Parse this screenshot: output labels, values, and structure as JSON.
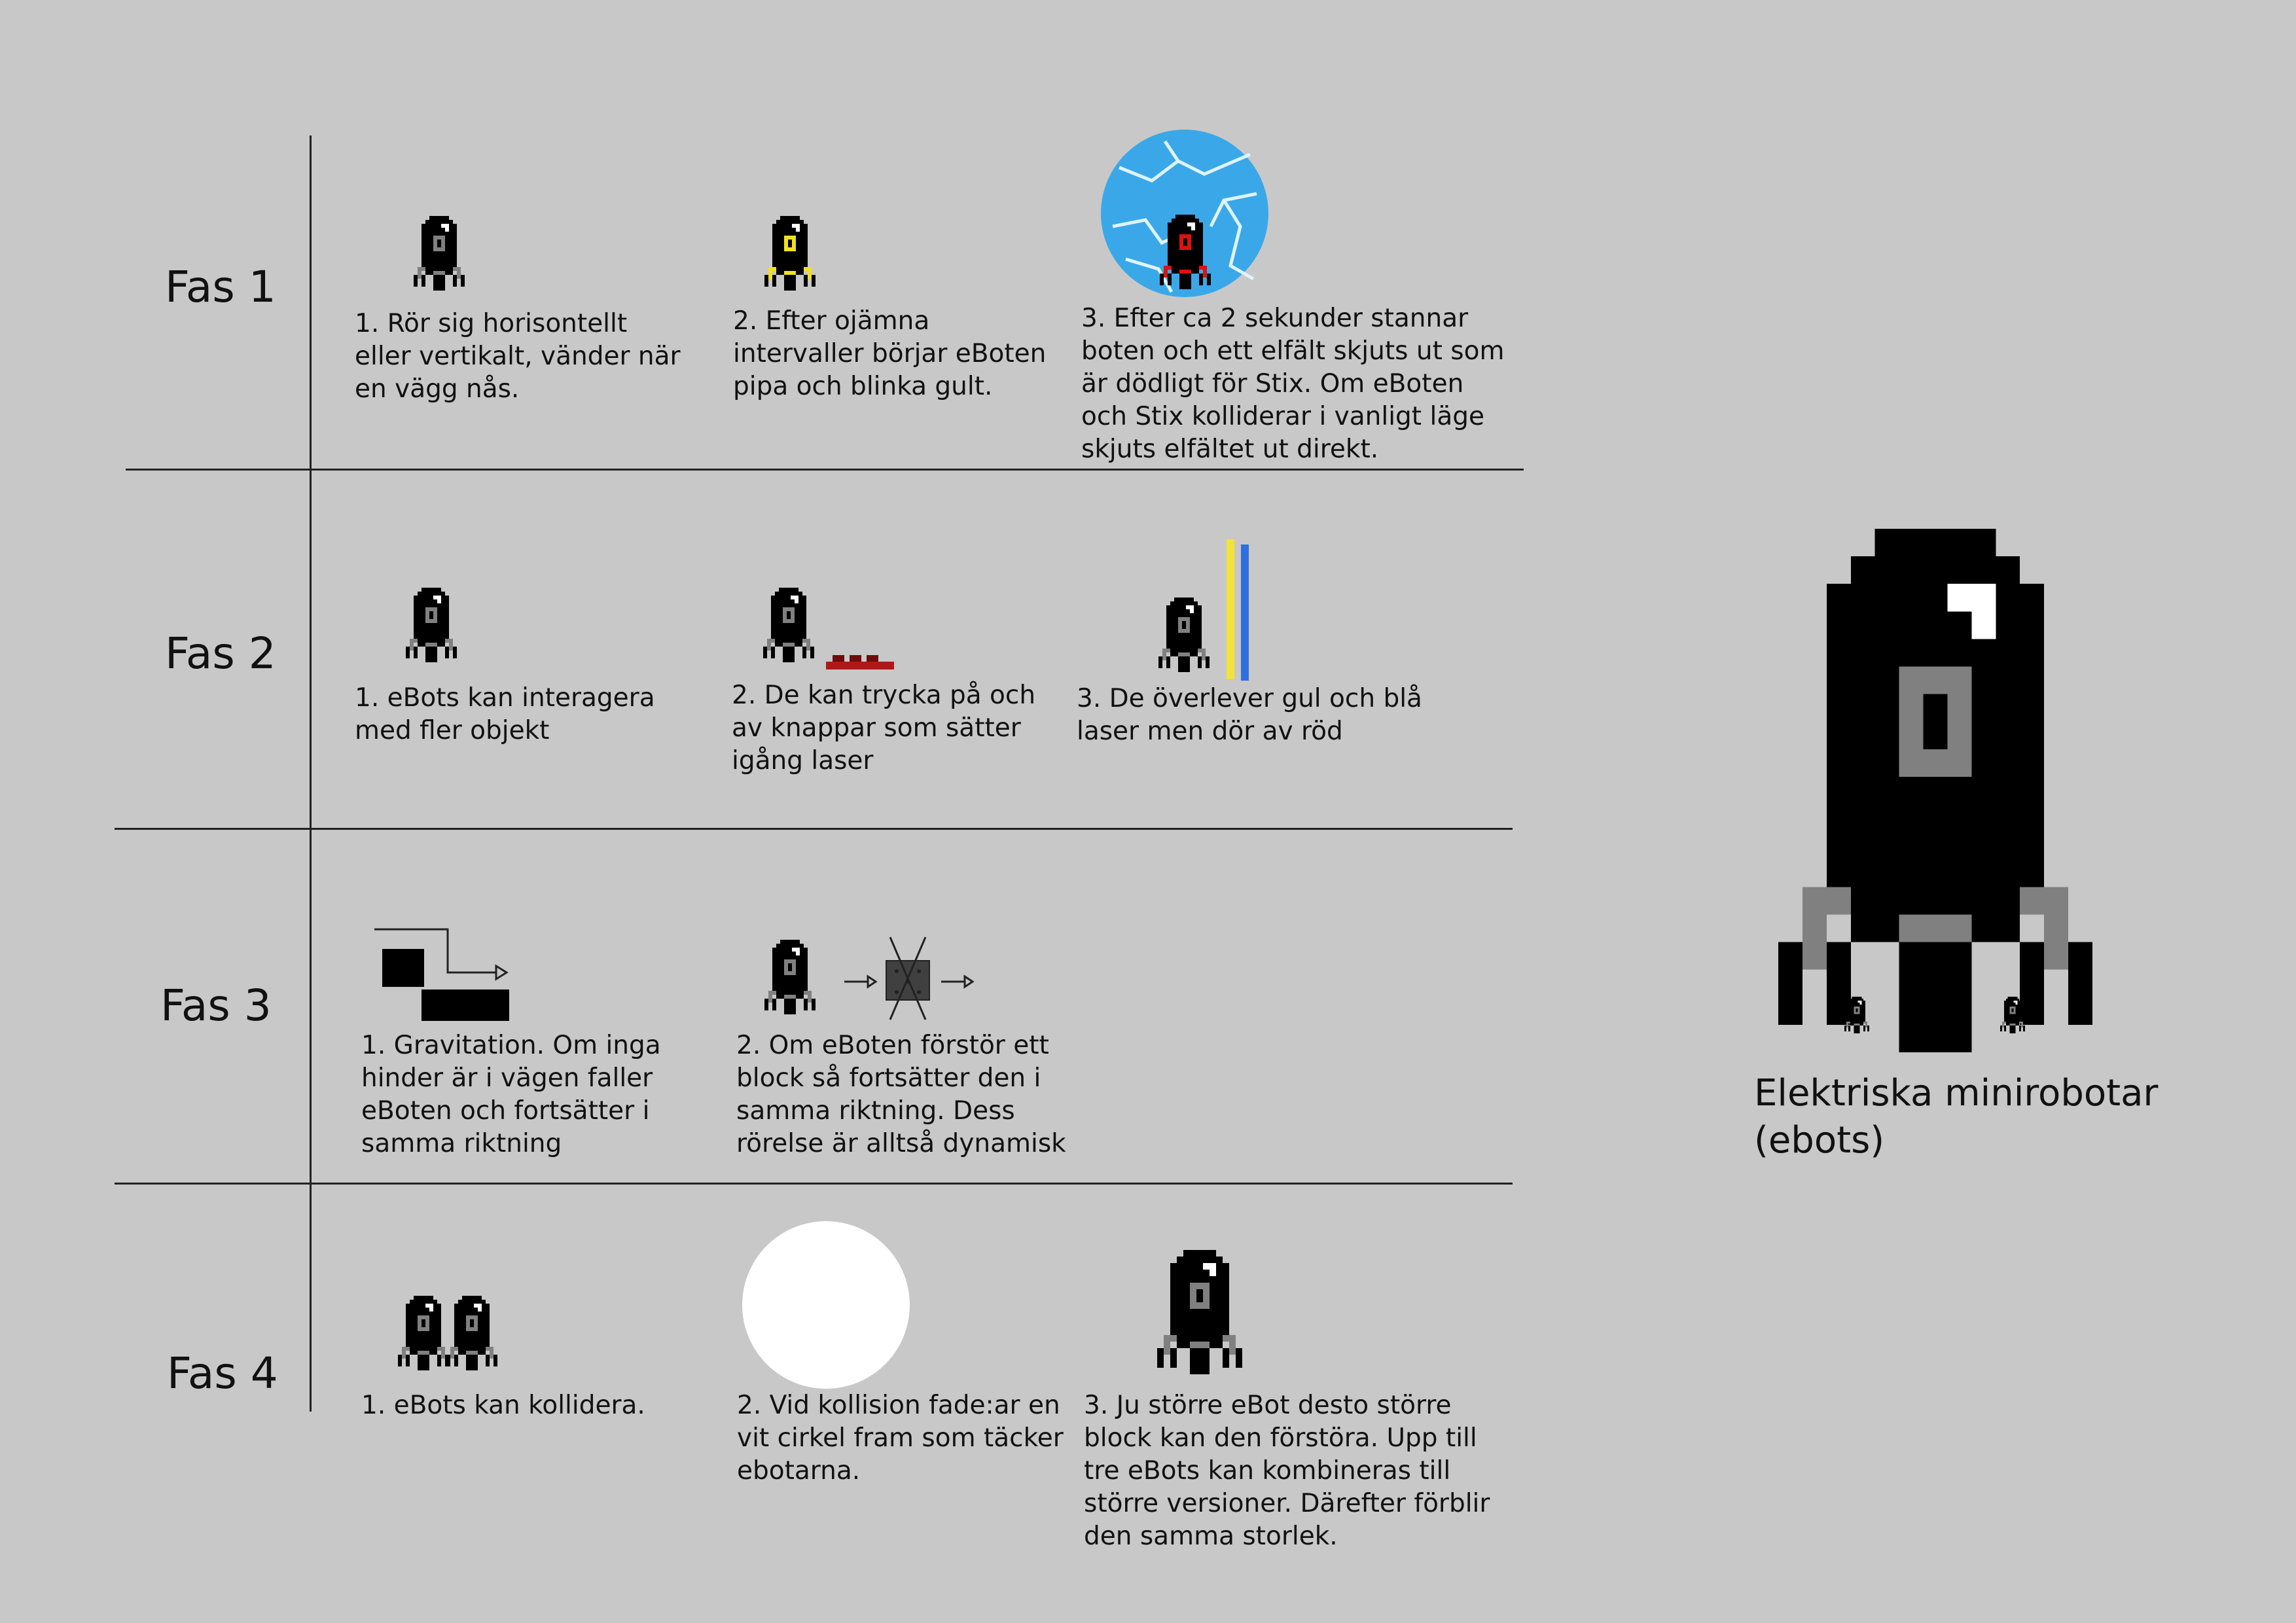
{
  "phases": [
    "Fas 1",
    "Fas 2",
    "Fas 3",
    "Fas 4"
  ],
  "steps": {
    "f1": [
      "1. Rör sig horisontellt eller vertikalt, vänder när en vägg nås.",
      "2. Efter ojämna intervaller börjar eBoten pipa och blinka gult.",
      "3. Efter ca 2 sekunder stannar boten och ett elfält skjuts ut som är dödligt för Stix. Om eBoten och Stix kolliderar i vanligt läge skjuts elfältet ut direkt."
    ],
    "f2": [
      "1. eBots kan interagera med fler objekt",
      "2. De kan trycka på och av knappar som sätter igång laser",
      "3. De överlever gul och blå laser men dör av röd"
    ],
    "f3": [
      "1. Gravitation. Om inga hinder är i vägen faller eBoten och fortsätter i samma riktning",
      "2. Om eBoten förstör ett block så fortsätter den i samma riktning. Dess rörelse är alltså dynamisk"
    ],
    "f4": [
      "1. eBots kan kollidera.",
      "2. Vid kollision fade:ar en vit cirkel fram som täcker ebotarna.",
      "3. Ju större eBot desto större block kan den förstöra. Upp till tre eBots kan kombineras till större versioner. Därefter förblir den samma storlek."
    ]
  },
  "title": {
    "line1": "Elektriska minirobotar",
    "line2": "(ebots)"
  },
  "colors": {
    "background": "#c8c8c8",
    "robot": "#000000",
    "robot_accent": "#808080",
    "warning": "#f0e020",
    "danger": "#e01010",
    "electric_field": "#3aa8e8",
    "laser_yellow": "#f2e23a",
    "laser_blue": "#2f6fe0",
    "button_red": "#b01818",
    "collision_circle": "#ffffff"
  }
}
